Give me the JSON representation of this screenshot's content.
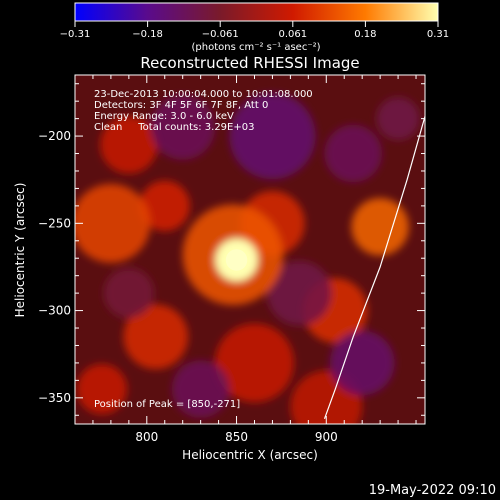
{
  "colorbar": {
    "ticks": [
      "-0.31",
      "-0.18",
      "-0.061",
      "0.061",
      "0.18",
      "0.31"
    ],
    "unit_label": "(photons cm⁻² s⁻¹ asec⁻²)",
    "range": [
      -0.31,
      0.31
    ],
    "colors": [
      "#0000ff",
      "#5a0b8c",
      "#7a1a2a",
      "#d01a00",
      "#ff7a00",
      "#ffffb0"
    ]
  },
  "info": {
    "time": "23-Dec-2013 10:00:04.000 to 10:01:08.000",
    "detectors": "Detectors: 3F 4F 5F 6F 7F 8F, Att 0",
    "energy": "Energy Range: 3.0 - 6.0 keV",
    "clean": "Clean     Total counts: 3.29E+03"
  },
  "peak_label": "Position of Peak = [850,-271]",
  "footer_date": "19-May-2022 09:10",
  "chart_data": {
    "type": "heatmap",
    "title": "Reconstructed RHESSI Image",
    "xlabel": "Heliocentric X (arcsec)",
    "ylabel": "Heliocentric Y (arcsec)",
    "xlim": [
      760,
      955
    ],
    "ylim": [
      -365,
      -165
    ],
    "xticks": [
      800,
      850,
      900
    ],
    "yticks": [
      -200,
      -250,
      -300,
      -350
    ],
    "xtick_labels": [
      "800",
      "850",
      "900"
    ],
    "ytick_labels": [
      "−200",
      "−250",
      "−300",
      "−350"
    ],
    "peak": {
      "x": 850,
      "y": -271,
      "value": 0.31
    },
    "blobs": [
      {
        "x": 850,
        "y": -271,
        "r": 12,
        "value": 0.31
      },
      {
        "x": 848,
        "y": -268,
        "r": 28,
        "value": 0.14
      },
      {
        "x": 870,
        "y": -250,
        "r": 18,
        "value": 0.08
      },
      {
        "x": 930,
        "y": -252,
        "r": 16,
        "value": 0.16
      },
      {
        "x": 905,
        "y": -300,
        "r": 18,
        "value": 0.09
      },
      {
        "x": 780,
        "y": -250,
        "r": 22,
        "value": 0.12
      },
      {
        "x": 805,
        "y": -315,
        "r": 18,
        "value": 0.08
      },
      {
        "x": 810,
        "y": -240,
        "r": 14,
        "value": 0.07
      },
      {
        "x": 790,
        "y": -205,
        "r": 16,
        "value": 0.05
      },
      {
        "x": 860,
        "y": -330,
        "r": 22,
        "value": 0.05
      },
      {
        "x": 900,
        "y": -355,
        "r": 20,
        "value": 0.04
      },
      {
        "x": 775,
        "y": -345,
        "r": 14,
        "value": 0.05
      },
      {
        "x": 820,
        "y": -195,
        "r": 18,
        "value": -0.12
      },
      {
        "x": 870,
        "y": -200,
        "r": 24,
        "value": -0.15
      },
      {
        "x": 915,
        "y": -210,
        "r": 16,
        "value": -0.12
      },
      {
        "x": 885,
        "y": -290,
        "r": 18,
        "value": -0.1
      },
      {
        "x": 830,
        "y": -345,
        "r": 16,
        "value": -0.12
      },
      {
        "x": 920,
        "y": -330,
        "r": 18,
        "value": -0.14
      },
      {
        "x": 790,
        "y": -290,
        "r": 14,
        "value": -0.08
      },
      {
        "x": 940,
        "y": -190,
        "r": 12,
        "value": -0.1
      }
    ],
    "limb_curve": [
      [
        956,
        -185
      ],
      [
        945,
        -225
      ],
      [
        930,
        -275
      ],
      [
        915,
        -315
      ],
      [
        905,
        -345
      ],
      [
        899,
        -362
      ]
    ]
  }
}
